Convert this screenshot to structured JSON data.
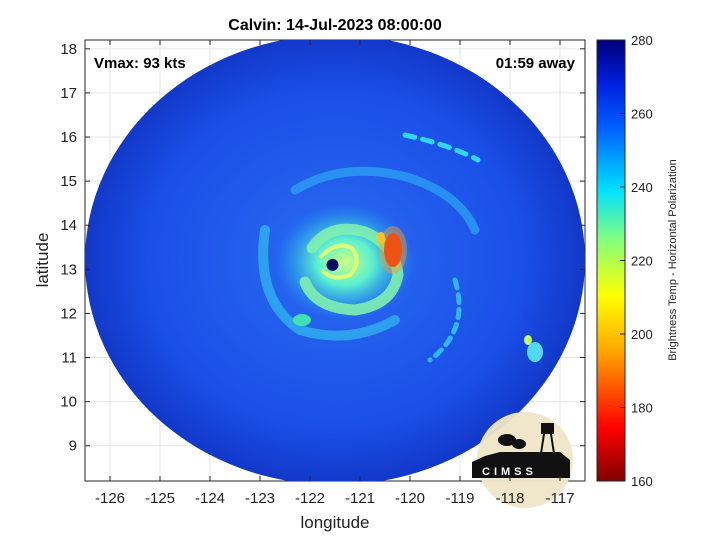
{
  "title": "Calvin: 14-Jul-2023 08:00:00",
  "annotations": {
    "vmax": "Vmax: 93 kts",
    "time_away": "01:59 away"
  },
  "logo": {
    "text": "CIMSS"
  },
  "colors": {
    "cold": "#0a2a9e",
    "field": "#1546e6",
    "band": "#27c4f0",
    "inner": "#5ff0c8",
    "hot": "#e01010",
    "eye": "#0a0a5a"
  },
  "chart_data": {
    "type": "heatmap",
    "title": "Calvin: 14-Jul-2023 08:00:00",
    "xlabel": "longitude",
    "ylabel": "latitude",
    "xlim": [
      -126.5,
      -116.5
    ],
    "ylim": [
      8.2,
      18.2
    ],
    "xticks": [
      -126,
      -125,
      -124,
      -123,
      -122,
      -121,
      -120,
      -119,
      -118,
      -117
    ],
    "yticks": [
      9,
      10,
      11,
      12,
      13,
      14,
      15,
      16,
      17,
      18
    ],
    "grid": true,
    "storm_center": {
      "lon": -121.55,
      "lat": 13.1
    },
    "colorbar": {
      "label": "Brightness Temp - Horizontal Polarization",
      "range": [
        160,
        280
      ],
      "ticks": [
        160,
        180,
        200,
        220,
        240,
        260,
        280
      ]
    }
  }
}
